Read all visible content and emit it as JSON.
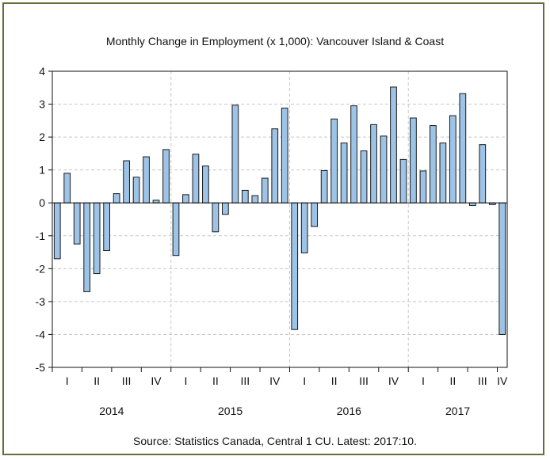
{
  "chart_data": {
    "type": "bar",
    "title": "Monthly Change in Employment (x 1,000): Vancouver Island & Coast",
    "source": "Source: Statistics Canada, Central 1 CU. Latest: 2017:10.",
    "ylim": [
      -5,
      4
    ],
    "yticks": [
      "4",
      "3",
      "2",
      "1",
      "0",
      "-1",
      "-2",
      "-3",
      "-4",
      "-5"
    ],
    "grid": true,
    "bar_color": "#9dc3e6",
    "bar_stroke": "#1a1a1a",
    "grid_color": "#c8c8c8",
    "x_start": "2014-01",
    "x_end": "2017-10",
    "quarter_labels": [
      "I",
      "II",
      "III",
      "IV",
      "I",
      "II",
      "III",
      "IV",
      "I",
      "II",
      "III",
      "IV",
      "I",
      "II",
      "III",
      "IV"
    ],
    "year_labels": [
      "2014",
      "2015",
      "2016",
      "2017"
    ],
    "values": [
      -1.7,
      0.9,
      -1.25,
      -2.7,
      -2.15,
      -1.45,
      0.28,
      1.28,
      0.78,
      1.4,
      0.08,
      1.62,
      -1.6,
      0.25,
      1.48,
      1.12,
      -0.88,
      -0.35,
      2.97,
      0.38,
      0.22,
      0.75,
      2.25,
      2.88,
      -3.85,
      -1.52,
      -0.72,
      0.98,
      2.55,
      1.82,
      2.95,
      1.58,
      2.38,
      2.03,
      3.52,
      1.32,
      2.58,
      0.97,
      2.35,
      1.82,
      2.65,
      3.32,
      -0.08,
      1.77,
      -0.05,
      -4.0
    ]
  }
}
